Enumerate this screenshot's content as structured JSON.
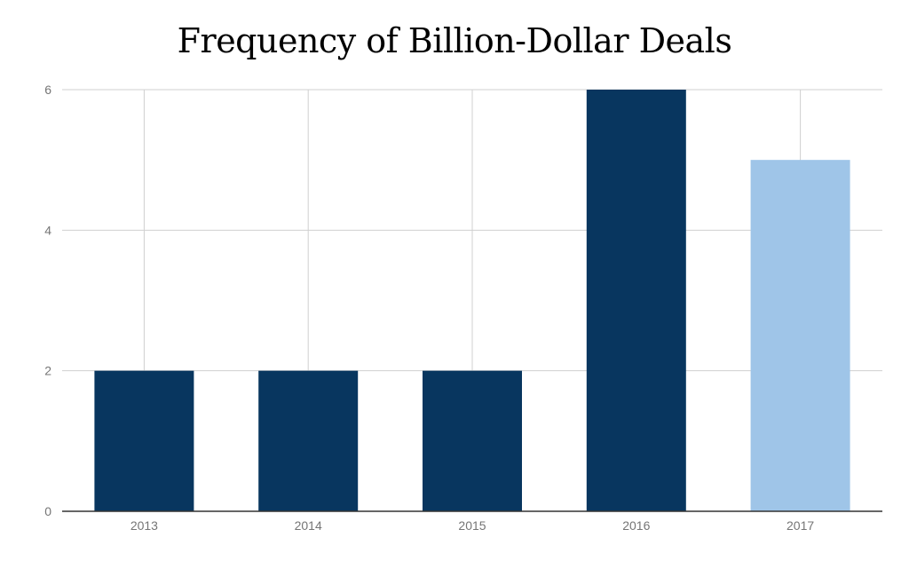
{
  "chart_data": {
    "type": "bar",
    "title": "Frequency of Billion-Dollar Deals",
    "xlabel": "",
    "ylabel": "",
    "categories": [
      "2013",
      "2014",
      "2015",
      "2016",
      "2017"
    ],
    "values": [
      2,
      2,
      2,
      6,
      5
    ],
    "bar_colors": [
      "#08365F",
      "#08365F",
      "#08365F",
      "#08365F",
      "#9FC5E8"
    ],
    "ylim": [
      0,
      6
    ],
    "yticks": [
      0,
      2,
      4,
      6
    ],
    "grid": true,
    "legend": "none"
  },
  "colors": {
    "primary_bar": "#08365F",
    "highlight_bar": "#9FC5E8",
    "grid": "#D0D0D0",
    "axis": "#333333"
  }
}
